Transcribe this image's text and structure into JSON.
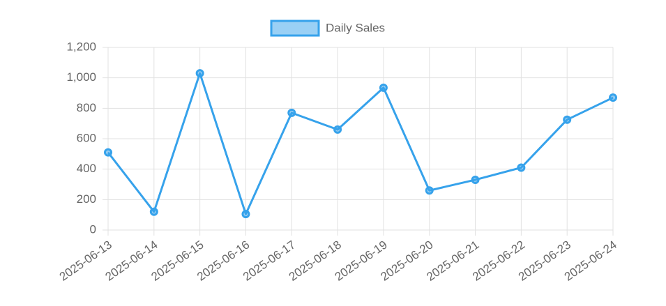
{
  "chart_data": {
    "type": "line",
    "categories": [
      "2025-06-13",
      "2025-06-14",
      "2025-06-15",
      "2025-06-16",
      "2025-06-17",
      "2025-06-18",
      "2025-06-19",
      "2025-06-20",
      "2025-06-21",
      "2025-06-22",
      "2025-06-23",
      "2025-06-24"
    ],
    "series": [
      {
        "name": "Daily Sales",
        "color": "#36a2eb",
        "values": [
          510,
          120,
          1030,
          105,
          770,
          660,
          935,
          260,
          330,
          410,
          725,
          870
        ]
      }
    ],
    "ylim": [
      0,
      1200
    ],
    "yticks": [
      0,
      200,
      400,
      600,
      800,
      {
        "value": 1000,
        "label": "1,000"
      },
      {
        "value": 1200,
        "label": "1,200"
      }
    ],
    "grid": true,
    "legend": "top"
  }
}
